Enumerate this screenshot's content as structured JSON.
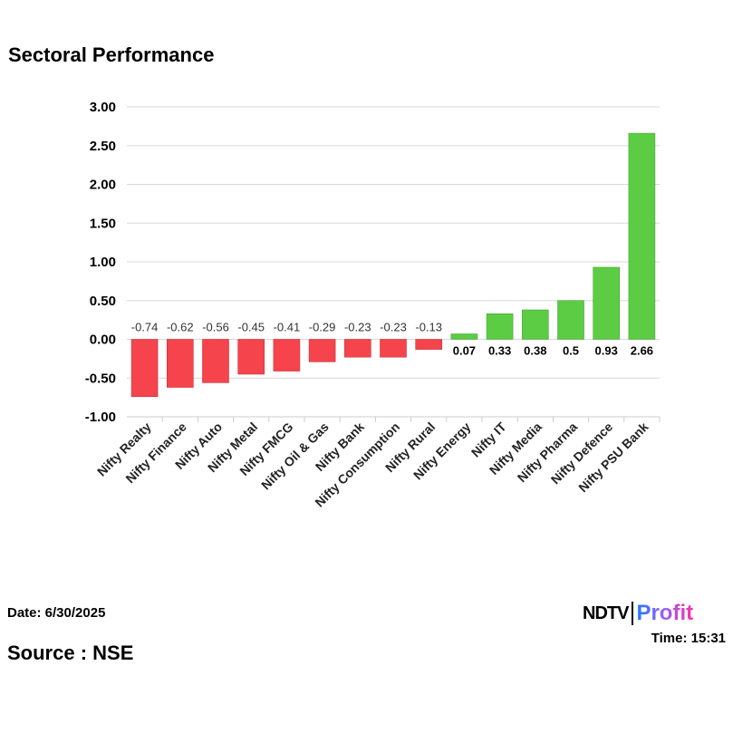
{
  "chart_data": {
    "type": "bar",
    "title": "Sectoral Performance",
    "categories": [
      "Nifty Realty",
      "Nifty Finance",
      "Nifty Auto",
      "Nifty Metal",
      "Nifty FMCG",
      "Nifty Oil & Gas",
      "Nifty Bank",
      "Nifty Consumption",
      "Nifty Rural",
      "Nifty Energy",
      "Nifty IT",
      "Nifty Media",
      "Nifty Pharma",
      "Nifty Defence",
      "Nifty PSU Bank"
    ],
    "values": [
      -0.74,
      -0.62,
      -0.56,
      -0.45,
      -0.41,
      -0.29,
      -0.23,
      -0.23,
      -0.13,
      0.07,
      0.33,
      0.38,
      0.5,
      0.93,
      2.66
    ],
    "data_labels": [
      "-0.74",
      "-0.62",
      "-0.56",
      "-0.45",
      "-0.41",
      "-0.29",
      "-0.23",
      "-0.23",
      "-0.13",
      "0.07",
      "0.33",
      "0.38",
      "0.5",
      "0.93",
      "2.66"
    ],
    "yticks": [
      "3.00",
      "2.50",
      "2.00",
      "1.50",
      "1.00",
      "0.50",
      "0.00",
      "-0.50",
      "-1.00"
    ],
    "ylim": [
      -1,
      3
    ],
    "grid": true,
    "colors": {
      "negative": "#f5444c",
      "positive": "#5ccc44"
    }
  },
  "footer": {
    "date": "Date: 6/30/2025",
    "time": "Time: 15:31",
    "source": "Source : NSE"
  },
  "logo": {
    "ndtv": "NDTV",
    "profit": "Profit"
  }
}
